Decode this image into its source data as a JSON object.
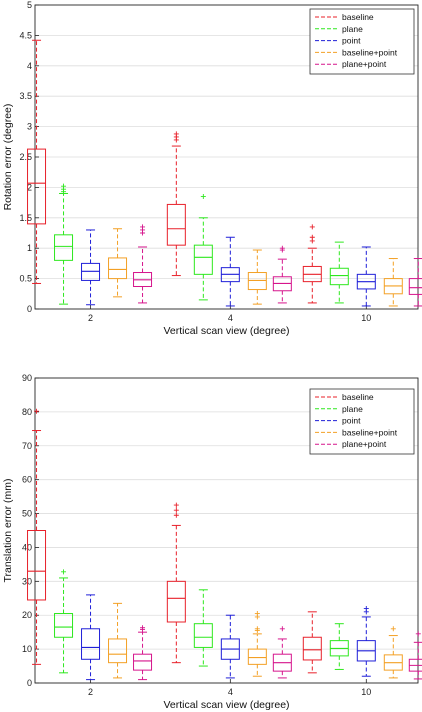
{
  "chart_data": [
    {
      "type": "box",
      "categories": [
        "2",
        "4",
        "10"
      ],
      "xlabel": "Vertical scan view (degree)",
      "ylabel": "Rotation error (degree)",
      "ylim": [
        0,
        5
      ],
      "yticks": [
        "0",
        "0.5",
        "1",
        "1.5",
        "2",
        "2.5",
        "3",
        "3.5",
        "4",
        "4.5",
        "5"
      ],
      "grid": true,
      "legend_position": "top-right",
      "series": [
        {
          "name": "baseline",
          "color": "#e8202a",
          "boxes": [
            {
              "min": 0.42,
              "q1": 1.4,
              "median": 2.07,
              "q3": 2.63,
              "max": 4.42,
              "outliers": []
            },
            {
              "min": 0.55,
              "q1": 1.05,
              "median": 1.32,
              "q3": 1.72,
              "max": 2.68,
              "outliers": [
                2.78,
                2.83,
                2.88
              ]
            },
            {
              "min": 0.1,
              "q1": 0.45,
              "median": 0.57,
              "q3": 0.7,
              "max": 1.0,
              "outliers": [
                1.12,
                1.18,
                1.35
              ]
            }
          ]
        },
        {
          "name": "plane",
          "color": "#2ee81e",
          "boxes": [
            {
              "min": 0.08,
              "q1": 0.8,
              "median": 1.03,
              "q3": 1.22,
              "max": 1.9,
              "outliers": [
                1.93,
                1.97,
                2.02
              ]
            },
            {
              "min": 0.15,
              "q1": 0.57,
              "median": 0.85,
              "q3": 1.05,
              "max": 1.5,
              "outliers": [
                1.85
              ]
            },
            {
              "min": 0.1,
              "q1": 0.4,
              "median": 0.55,
              "q3": 0.67,
              "max": 1.1,
              "outliers": []
            }
          ]
        },
        {
          "name": "point",
          "color": "#1f1fd8",
          "boxes": [
            {
              "min": 0.07,
              "q1": 0.47,
              "median": 0.62,
              "q3": 0.75,
              "max": 1.3,
              "outliers": []
            },
            {
              "min": 0.05,
              "q1": 0.45,
              "median": 0.57,
              "q3": 0.68,
              "max": 1.18,
              "outliers": []
            },
            {
              "min": 0.05,
              "q1": 0.33,
              "median": 0.45,
              "q3": 0.57,
              "max": 1.02,
              "outliers": []
            }
          ]
        },
        {
          "name": "baseline+point",
          "color": "#f3a025",
          "boxes": [
            {
              "min": 0.2,
              "q1": 0.5,
              "median": 0.65,
              "q3": 0.84,
              "max": 1.32,
              "outliers": []
            },
            {
              "min": 0.08,
              "q1": 0.32,
              "median": 0.47,
              "q3": 0.6,
              "max": 0.97,
              "outliers": []
            },
            {
              "min": 0.05,
              "q1": 0.25,
              "median": 0.38,
              "q3": 0.5,
              "max": 0.83,
              "outliers": []
            }
          ]
        },
        {
          "name": "plane+point",
          "color": "#d6158c",
          "boxes": [
            {
              "min": 0.1,
              "q1": 0.37,
              "median": 0.48,
              "q3": 0.6,
              "max": 1.02,
              "outliers": [
                1.25,
                1.3,
                1.35
              ]
            },
            {
              "min": 0.1,
              "q1": 0.3,
              "median": 0.42,
              "q3": 0.53,
              "max": 0.82,
              "outliers": [
                0.97,
                1.0
              ]
            },
            {
              "min": 0.05,
              "q1": 0.24,
              "median": 0.35,
              "q3": 0.5,
              "max": 0.83,
              "outliers": []
            }
          ]
        }
      ]
    },
    {
      "type": "box",
      "categories": [
        "2",
        "4",
        "10"
      ],
      "xlabel": "Vertical scan view (degree)",
      "ylabel": "Translation error (mm)",
      "ylim": [
        0,
        90
      ],
      "yticks": [
        "0",
        "10",
        "20",
        "30",
        "40",
        "50",
        "60",
        "70",
        "80",
        "90"
      ],
      "grid": true,
      "legend_position": "top-right",
      "series": [
        {
          "name": "baseline",
          "color": "#e8202a",
          "boxes": [
            {
              "min": 5.5,
              "q1": 24.5,
              "median": 33,
              "q3": 45,
              "max": 74.5,
              "outliers": [
                80.2
              ]
            },
            {
              "min": 6,
              "q1": 18,
              "median": 25,
              "q3": 30,
              "max": 46.5,
              "outliers": [
                49.5,
                51,
                52.5
              ]
            },
            {
              "min": 3,
              "q1": 6.8,
              "median": 9.8,
              "q3": 13.5,
              "max": 21,
              "outliers": []
            }
          ]
        },
        {
          "name": "plane",
          "color": "#2ee81e",
          "boxes": [
            {
              "min": 3,
              "q1": 13.5,
              "median": 16.5,
              "q3": 20.5,
              "max": 31,
              "outliers": [
                32.8
              ]
            },
            {
              "min": 5,
              "q1": 10.5,
              "median": 13.5,
              "q3": 17.5,
              "max": 27.5,
              "outliers": []
            },
            {
              "min": 4,
              "q1": 8,
              "median": 10.2,
              "q3": 12.5,
              "max": 17.5,
              "outliers": []
            }
          ]
        },
        {
          "name": "point",
          "color": "#1f1fd8",
          "boxes": [
            {
              "min": 1,
              "q1": 7,
              "median": 10.5,
              "q3": 16,
              "max": 26,
              "outliers": []
            },
            {
              "min": 1.5,
              "q1": 7,
              "median": 10,
              "q3": 13,
              "max": 20,
              "outliers": []
            },
            {
              "min": 2,
              "q1": 6.5,
              "median": 9.5,
              "q3": 12.5,
              "max": 19.5,
              "outliers": [
                21,
                22
              ]
            }
          ]
        },
        {
          "name": "baseline+point",
          "color": "#f3a025",
          "boxes": [
            {
              "min": 1.5,
              "q1": 6,
              "median": 8.5,
              "q3": 13,
              "max": 23.5,
              "outliers": []
            },
            {
              "min": 2,
              "q1": 5.5,
              "median": 7.5,
              "q3": 10,
              "max": 14.5,
              "outliers": [
                15.5,
                16,
                19.5,
                20.5
              ]
            },
            {
              "min": 1.5,
              "q1": 3.8,
              "median": 6,
              "q3": 8.3,
              "max": 14,
              "outliers": [
                16
              ]
            }
          ]
        },
        {
          "name": "plane+point",
          "color": "#d6158c",
          "boxes": [
            {
              "min": 1,
              "q1": 3.8,
              "median": 6.5,
              "q3": 8.5,
              "max": 15,
              "outliers": [
                15.8,
                16.3
              ]
            },
            {
              "min": 1.5,
              "q1": 3.5,
              "median": 6,
              "q3": 8.5,
              "max": 13,
              "outliers": [
                16
              ]
            },
            {
              "min": 1.2,
              "q1": 3.5,
              "median": 5.2,
              "q3": 7,
              "max": 12,
              "outliers": [
                14.5
              ]
            }
          ]
        }
      ]
    }
  ]
}
